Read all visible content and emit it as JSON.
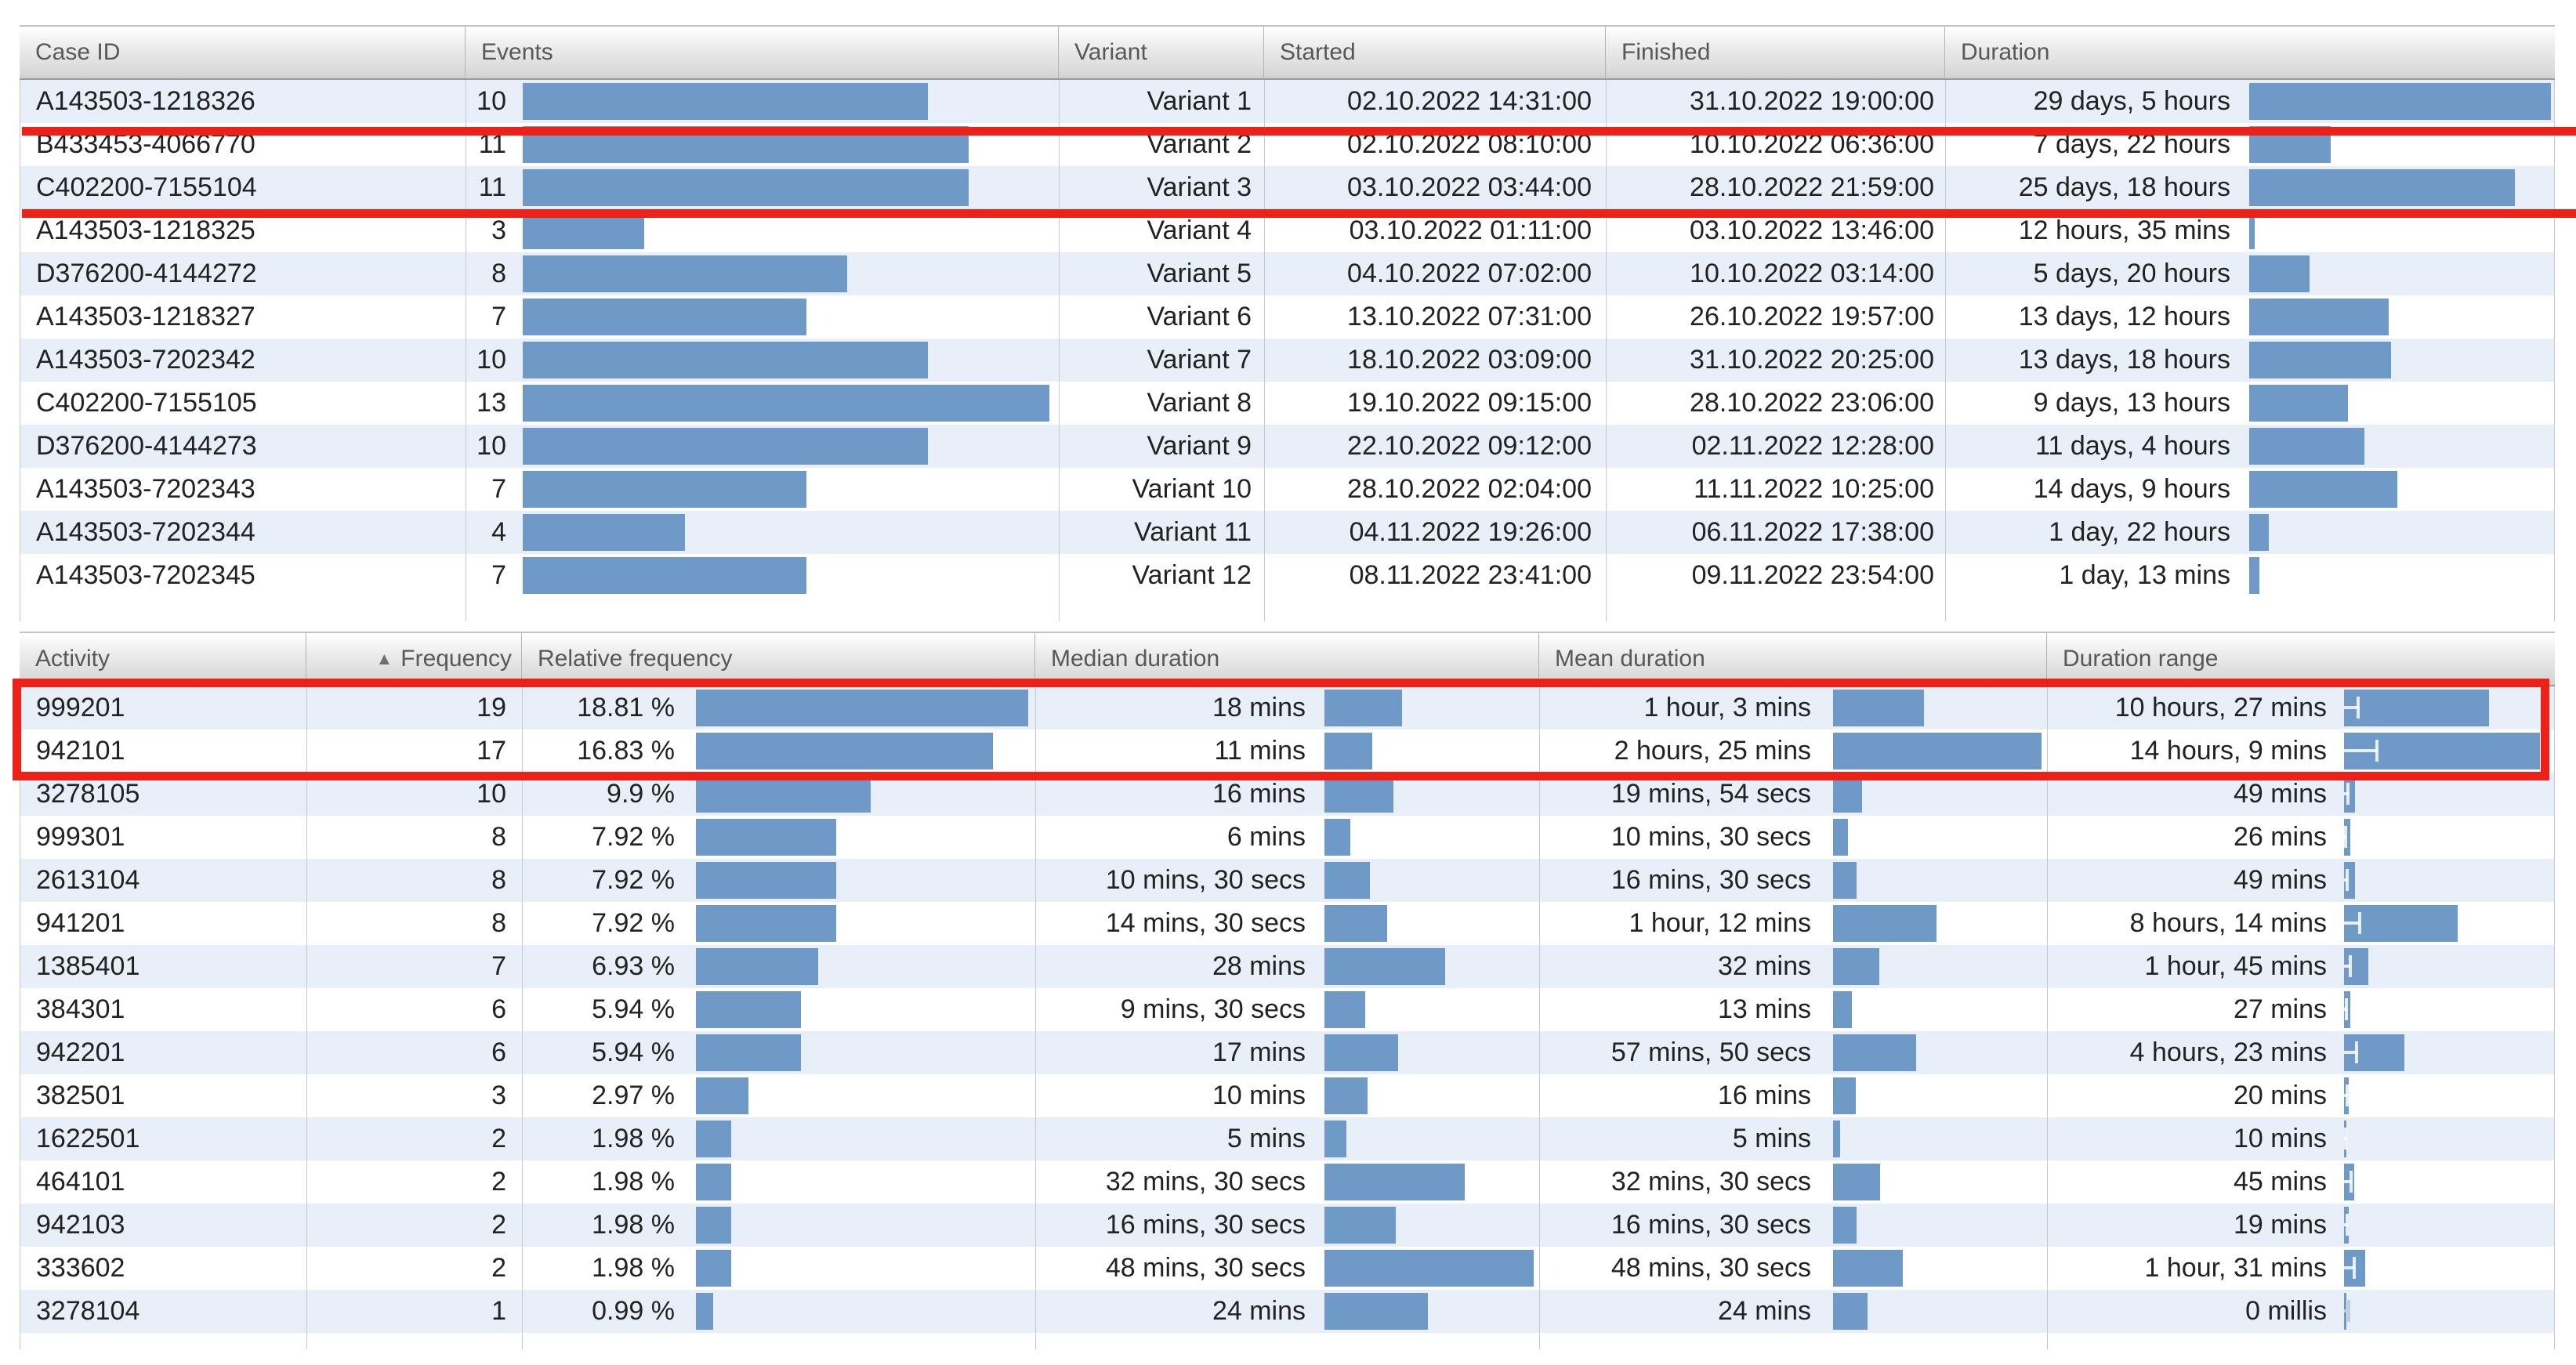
{
  "colors": {
    "bar_blue": "#6f9ac7",
    "row_alt_blue": "#e9eff8",
    "highlight_red": "#ee2118"
  },
  "cases_table": {
    "headers": [
      "Case ID",
      "Events",
      "Variant",
      "Started",
      "Finished",
      "Duration"
    ],
    "highlight_rows_first": 2,
    "highlight_rows_last": 3,
    "rows": [
      {
        "case_id": "A143503-1218326",
        "events": 10,
        "variant": "Variant 1",
        "started": "02.10.2022 14:31:00",
        "finished": "31.10.2022 19:00:00",
        "duration": "29 days, 5 hours",
        "duration_mins": 42060
      },
      {
        "case_id": "B433453-4066770",
        "events": 11,
        "variant": "Variant 2",
        "started": "02.10.2022 08:10:00",
        "finished": "10.10.2022 06:36:00",
        "duration": "7 days, 22 hours",
        "duration_mins": 11400
      },
      {
        "case_id": "C402200-7155104",
        "events": 11,
        "variant": "Variant 3",
        "started": "03.10.2022 03:44:00",
        "finished": "28.10.2022 21:59:00",
        "duration": "25 days, 18 hours",
        "duration_mins": 37080
      },
      {
        "case_id": "A143503-1218325",
        "events": 3,
        "variant": "Variant 4",
        "started": "03.10.2022 01:11:00",
        "finished": "03.10.2022 13:46:00",
        "duration": "12 hours, 35 mins",
        "duration_mins": 755
      },
      {
        "case_id": "D376200-4144272",
        "events": 8,
        "variant": "Variant 5",
        "started": "04.10.2022 07:02:00",
        "finished": "10.10.2022 03:14:00",
        "duration": "5 days, 20 hours",
        "duration_mins": 8400
      },
      {
        "case_id": "A143503-1218327",
        "events": 7,
        "variant": "Variant 6",
        "started": "13.10.2022 07:31:00",
        "finished": "26.10.2022 19:57:00",
        "duration": "13 days, 12 hours",
        "duration_mins": 19440
      },
      {
        "case_id": "A143503-7202342",
        "events": 10,
        "variant": "Variant 7",
        "started": "18.10.2022 03:09:00",
        "finished": "31.10.2022 20:25:00",
        "duration": "13 days, 18 hours",
        "duration_mins": 19800
      },
      {
        "case_id": "C402200-7155105",
        "events": 13,
        "variant": "Variant 8",
        "started": "19.10.2022 09:15:00",
        "finished": "28.10.2022 23:06:00",
        "duration": "9 days, 13 hours",
        "duration_mins": 13740
      },
      {
        "case_id": "D376200-4144273",
        "events": 10,
        "variant": "Variant 9",
        "started": "22.10.2022 09:12:00",
        "finished": "02.11.2022 12:28:00",
        "duration": "11 days, 4 hours",
        "duration_mins": 16080
      },
      {
        "case_id": "A143503-7202343",
        "events": 7,
        "variant": "Variant 10",
        "started": "28.10.2022 02:04:00",
        "finished": "11.11.2022 10:25:00",
        "duration": "14 days, 9 hours",
        "duration_mins": 20700
      },
      {
        "case_id": "A143503-7202344",
        "events": 4,
        "variant": "Variant 11",
        "started": "04.11.2022 19:26:00",
        "finished": "06.11.2022 17:38:00",
        "duration": "1 day, 22 hours",
        "duration_mins": 2760
      },
      {
        "case_id": "A143503-7202345",
        "events": 7,
        "variant": "Variant 12",
        "started": "08.11.2022 23:41:00",
        "finished": "09.11.2022 23:54:00",
        "duration": "1 day, 13 mins",
        "duration_mins": 1453
      }
    ]
  },
  "activities_table": {
    "headers": [
      "Activity",
      "Frequency",
      "Relative frequency",
      "Median duration",
      "Mean duration",
      "Duration range"
    ],
    "sort_icon": "▲",
    "sorted_column": "Frequency",
    "highlight_rows_first": 1,
    "highlight_rows_last": 2,
    "rows": [
      {
        "activity": "999201",
        "frequency": 19,
        "relative": "18.81 %",
        "relative_pct": 18.81,
        "median": "18 mins",
        "median_mins": 18,
        "mean": "1 hour, 3 mins",
        "mean_mins": 63,
        "range": "10 hours, 27 mins",
        "range_mins": 627
      },
      {
        "activity": "942101",
        "frequency": 17,
        "relative": "16.83 %",
        "relative_pct": 16.83,
        "median": "11 mins",
        "median_mins": 11,
        "mean": "2 hours, 25 mins",
        "mean_mins": 145,
        "range": "14 hours, 9 mins",
        "range_mins": 849
      },
      {
        "activity": "3278105",
        "frequency": 10,
        "relative": "9.9 %",
        "relative_pct": 9.9,
        "median": "16 mins",
        "median_mins": 16,
        "mean": "19 mins, 54 secs",
        "mean_mins": 19.9,
        "range": "49 mins",
        "range_mins": 49
      },
      {
        "activity": "999301",
        "frequency": 8,
        "relative": "7.92 %",
        "relative_pct": 7.92,
        "median": "6 mins",
        "median_mins": 6,
        "mean": "10 mins, 30 secs",
        "mean_mins": 10.5,
        "range": "26 mins",
        "range_mins": 26
      },
      {
        "activity": "2613104",
        "frequency": 8,
        "relative": "7.92 %",
        "relative_pct": 7.92,
        "median": "10 mins, 30 secs",
        "median_mins": 10.5,
        "mean": "16 mins, 30 secs",
        "mean_mins": 16.5,
        "range": "49 mins",
        "range_mins": 49
      },
      {
        "activity": "941201",
        "frequency": 8,
        "relative": "7.92 %",
        "relative_pct": 7.92,
        "median": "14 mins, 30 secs",
        "median_mins": 14.5,
        "mean": "1 hour, 12 mins",
        "mean_mins": 72,
        "range": "8 hours, 14 mins",
        "range_mins": 494
      },
      {
        "activity": "1385401",
        "frequency": 7,
        "relative": "6.93 %",
        "relative_pct": 6.93,
        "median": "28 mins",
        "median_mins": 28,
        "mean": "32 mins",
        "mean_mins": 32,
        "range": "1 hour, 45 mins",
        "range_mins": 105
      },
      {
        "activity": "384301",
        "frequency": 6,
        "relative": "5.94 %",
        "relative_pct": 5.94,
        "median": "9 mins, 30 secs",
        "median_mins": 9.5,
        "mean": "13 mins",
        "mean_mins": 13,
        "range": "27 mins",
        "range_mins": 27
      },
      {
        "activity": "942201",
        "frequency": 6,
        "relative": "5.94 %",
        "relative_pct": 5.94,
        "median": "17 mins",
        "median_mins": 17,
        "mean": "57 mins, 50 secs",
        "mean_mins": 57.8,
        "range": "4 hours, 23 mins",
        "range_mins": 263
      },
      {
        "activity": "382501",
        "frequency": 3,
        "relative": "2.97 %",
        "relative_pct": 2.97,
        "median": "10 mins",
        "median_mins": 10,
        "mean": "16 mins",
        "mean_mins": 16,
        "range": "20 mins",
        "range_mins": 20
      },
      {
        "activity": "1622501",
        "frequency": 2,
        "relative": "1.98 %",
        "relative_pct": 1.98,
        "median": "5 mins",
        "median_mins": 5,
        "mean": "5 mins",
        "mean_mins": 5,
        "range": "10 mins",
        "range_mins": 10
      },
      {
        "activity": "464101",
        "frequency": 2,
        "relative": "1.98 %",
        "relative_pct": 1.98,
        "median": "32 mins, 30 secs",
        "median_mins": 32.5,
        "mean": "32 mins, 30 secs",
        "mean_mins": 32.5,
        "range": "45 mins",
        "range_mins": 45
      },
      {
        "activity": "942103",
        "frequency": 2,
        "relative": "1.98 %",
        "relative_pct": 1.98,
        "median": "16 mins, 30 secs",
        "median_mins": 16.5,
        "mean": "16 mins, 30 secs",
        "mean_mins": 16.5,
        "range": "19 mins",
        "range_mins": 19
      },
      {
        "activity": "333602",
        "frequency": 2,
        "relative": "1.98 %",
        "relative_pct": 1.98,
        "median": "48 mins, 30 secs",
        "median_mins": 48.5,
        "mean": "48 mins, 30 secs",
        "mean_mins": 48.5,
        "range": "1 hour, 31 mins",
        "range_mins": 91
      },
      {
        "activity": "3278104",
        "frequency": 1,
        "relative": "0.99 %",
        "relative_pct": 0.99,
        "median": "24 mins",
        "median_mins": 24,
        "mean": "24 mins",
        "mean_mins": 24,
        "range": "0 millis",
        "range_mins": 0
      }
    ]
  }
}
